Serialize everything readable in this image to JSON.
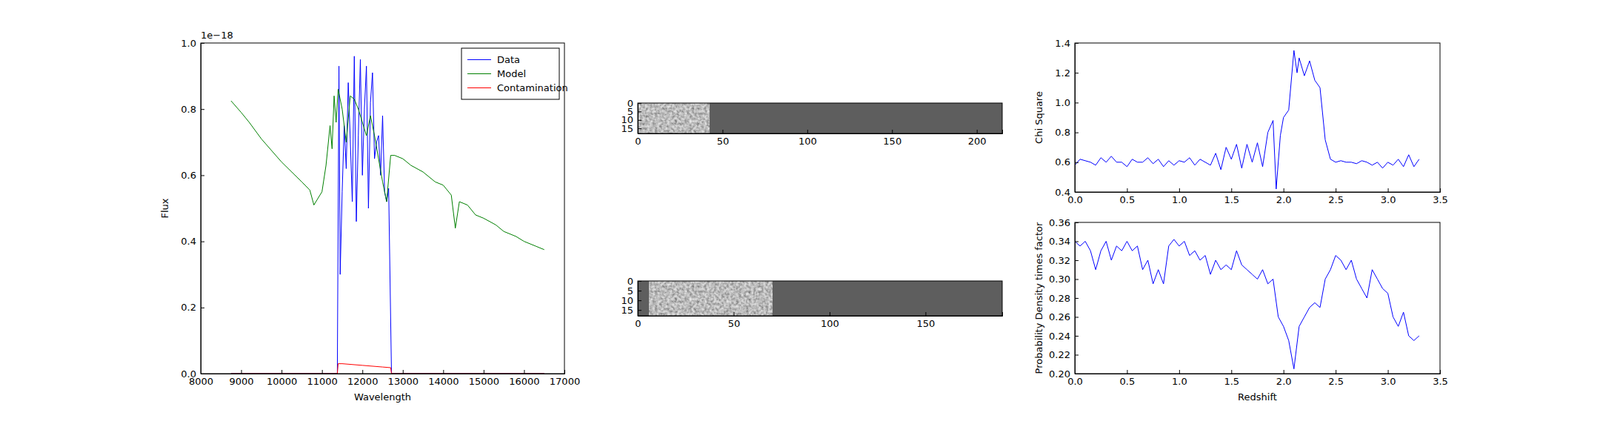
{
  "chart_data": [
    {
      "type": "line",
      "xlabel": "Wavelength",
      "ylabel": "Flux",
      "offset_label": "1e−18",
      "xlim": [
        8000,
        17000
      ],
      "xticks": [
        8000,
        9000,
        10000,
        11000,
        12000,
        13000,
        14000,
        15000,
        16000,
        17000
      ],
      "ylim": [
        0,
        1
      ],
      "yticks": [
        {
          "value": 0,
          "label": "0.0"
        },
        {
          "value": 0.2,
          "label": "0.2"
        },
        {
          "value": 0.4,
          "label": "0.4"
        },
        {
          "value": 0.6,
          "label": "0.6"
        },
        {
          "value": 0.8,
          "label": "0.8"
        },
        {
          "value": 1,
          "label": "1.0"
        }
      ],
      "legend": "upper right",
      "series": [
        {
          "name": "Data",
          "color": "#0000ff",
          "x": [
            8750,
            11380,
            11420,
            11450,
            11500,
            11550,
            11600,
            11650,
            11700,
            11750,
            11800,
            11850,
            11900,
            11950,
            12000,
            12050,
            12100,
            12150,
            12200,
            12250,
            12300,
            12350,
            12400,
            12450,
            12500,
            12550,
            12600,
            12650,
            12720,
            16500
          ],
          "values": [
            0,
            0,
            0.93,
            0.3,
            0.55,
            0.75,
            0.62,
            0.88,
            0.71,
            0.52,
            0.96,
            0.46,
            0.72,
            0.95,
            0.6,
            0.8,
            0.93,
            0.5,
            0.82,
            0.91,
            0.65,
            0.7,
            0.72,
            0.6,
            0.78,
            0.55,
            0.52,
            0.56,
            0,
            0
          ]
        },
        {
          "name": "Model",
          "color": "#008000",
          "x": [
            8750,
            9000,
            9200,
            9500,
            10000,
            10500,
            10700,
            10800,
            11000,
            11100,
            11200,
            11250,
            11300,
            11350,
            11400,
            11500,
            11600,
            11700,
            11800,
            11900,
            12000,
            12100,
            12200,
            12300,
            12400,
            12500,
            12600,
            12700,
            12800,
            13000,
            13200,
            13500,
            13800,
            14000,
            14200,
            14300,
            14400,
            14600,
            14800,
            15000,
            15300,
            15500,
            15800,
            16000,
            16300,
            16500
          ],
          "values": [
            0.825,
            0.79,
            0.76,
            0.71,
            0.64,
            0.58,
            0.555,
            0.51,
            0.55,
            0.63,
            0.75,
            0.68,
            0.84,
            0.76,
            0.86,
            0.8,
            0.7,
            0.84,
            0.83,
            0.8,
            0.76,
            0.72,
            0.78,
            0.72,
            0.65,
            0.58,
            0.52,
            0.66,
            0.66,
            0.65,
            0.63,
            0.61,
            0.58,
            0.57,
            0.54,
            0.44,
            0.52,
            0.51,
            0.48,
            0.47,
            0.45,
            0.43,
            0.415,
            0.4,
            0.385,
            0.375
          ]
        },
        {
          "name": "Contamination",
          "color": "#ff0000",
          "x": [
            8750,
            11380,
            11400,
            11500,
            12000,
            12500,
            12700,
            12720,
            16500
          ],
          "values": [
            0,
            0,
            0.03,
            0.03,
            0.025,
            0.02,
            0.018,
            0,
            0
          ]
        }
      ]
    },
    {
      "type": "image",
      "xlim": [
        0,
        215
      ],
      "xticks": [
        0,
        50,
        100,
        150,
        200
      ],
      "ylim": [
        18,
        0
      ],
      "yticks": [
        0,
        5,
        10,
        15
      ],
      "data_extent": [
        0,
        42
      ]
    },
    {
      "type": "image",
      "xlim": [
        0,
        190
      ],
      "xticks": [
        0,
        50,
        100,
        150
      ],
      "ylim": [
        18,
        0
      ],
      "yticks": [
        0,
        5,
        10,
        15
      ],
      "data_extent": [
        6,
        70
      ]
    },
    {
      "type": "line",
      "ylabel": "Chi Square",
      "color": "#0000ff",
      "xlim": [
        0,
        3.5
      ],
      "xticks": [
        {
          "value": 0,
          "label": "0.0"
        },
        0.5,
        {
          "value": 1,
          "label": "1.0"
        },
        1.5,
        {
          "value": 2,
          "label": "2.0"
        },
        2.5,
        {
          "value": 3,
          "label": "3.0"
        },
        3.5
      ],
      "ylim": [
        0.4,
        1.4
      ],
      "yticks": [
        0.4,
        0.6,
        0.8,
        {
          "value": 1,
          "label": "1.0"
        },
        1.2,
        1.4
      ],
      "x": [
        0,
        0.05,
        0.1,
        0.15,
        0.2,
        0.25,
        0.3,
        0.35,
        0.4,
        0.45,
        0.5,
        0.55,
        0.6,
        0.65,
        0.7,
        0.75,
        0.8,
        0.85,
        0.9,
        0.95,
        1.0,
        1.05,
        1.1,
        1.15,
        1.2,
        1.25,
        1.3,
        1.35,
        1.4,
        1.45,
        1.5,
        1.55,
        1.6,
        1.65,
        1.7,
        1.75,
        1.8,
        1.85,
        1.9,
        1.93,
        1.97,
        2.0,
        2.05,
        2.1,
        2.13,
        2.15,
        2.2,
        2.25,
        2.3,
        2.35,
        2.4,
        2.45,
        2.5,
        2.55,
        2.6,
        2.65,
        2.7,
        2.75,
        2.8,
        2.85,
        2.9,
        2.95,
        3.0,
        3.05,
        3.1,
        3.15,
        3.2,
        3.25,
        3.3
      ],
      "values": [
        0.58,
        0.62,
        0.61,
        0.6,
        0.58,
        0.63,
        0.6,
        0.64,
        0.6,
        0.6,
        0.57,
        0.62,
        0.6,
        0.6,
        0.63,
        0.59,
        0.62,
        0.57,
        0.61,
        0.58,
        0.61,
        0.6,
        0.63,
        0.58,
        0.62,
        0.6,
        0.58,
        0.66,
        0.55,
        0.7,
        0.62,
        0.72,
        0.56,
        0.72,
        0.6,
        0.73,
        0.57,
        0.8,
        0.88,
        0.42,
        0.78,
        0.9,
        0.95,
        1.35,
        1.2,
        1.3,
        1.18,
        1.28,
        1.15,
        1.1,
        0.75,
        0.62,
        0.6,
        0.61,
        0.6,
        0.6,
        0.59,
        0.61,
        0.6,
        0.58,
        0.6,
        0.56,
        0.6,
        0.58,
        0.62,
        0.57,
        0.65,
        0.57,
        0.62
      ]
    },
    {
      "type": "line",
      "xlabel": "Redshift",
      "ylabel": "Probability Density times factor",
      "color": "#0000ff",
      "xlim": [
        0,
        3.5
      ],
      "xticks": [
        {
          "value": 0,
          "label": "0.0"
        },
        0.5,
        {
          "value": 1,
          "label": "1.0"
        },
        1.5,
        {
          "value": 2,
          "label": "2.0"
        },
        2.5,
        {
          "value": 3,
          "label": "3.0"
        },
        3.5
      ],
      "ylim": [
        0.2,
        0.36
      ],
      "yticks": [
        {
          "value": 0.2,
          "label": "0.20"
        },
        0.22,
        0.24,
        0.26,
        0.28,
        {
          "value": 0.3,
          "label": "0.30"
        },
        0.32,
        0.34,
        0.36
      ],
      "x": [
        0,
        0.05,
        0.1,
        0.15,
        0.2,
        0.25,
        0.3,
        0.35,
        0.4,
        0.45,
        0.5,
        0.55,
        0.6,
        0.65,
        0.7,
        0.75,
        0.8,
        0.85,
        0.9,
        0.95,
        1.0,
        1.05,
        1.1,
        1.15,
        1.2,
        1.25,
        1.3,
        1.35,
        1.4,
        1.45,
        1.5,
        1.55,
        1.6,
        1.65,
        1.7,
        1.75,
        1.8,
        1.85,
        1.9,
        1.95,
        2.0,
        2.05,
        2.1,
        2.15,
        2.2,
        2.25,
        2.3,
        2.35,
        2.4,
        2.45,
        2.5,
        2.55,
        2.6,
        2.65,
        2.7,
        2.75,
        2.8,
        2.85,
        2.9,
        2.95,
        3.0,
        3.05,
        3.1,
        3.15,
        3.2,
        3.25,
        3.3
      ],
      "values": [
        0.34,
        0.335,
        0.34,
        0.33,
        0.31,
        0.33,
        0.34,
        0.32,
        0.335,
        0.33,
        0.34,
        0.33,
        0.335,
        0.31,
        0.32,
        0.295,
        0.31,
        0.295,
        0.335,
        0.342,
        0.335,
        0.34,
        0.325,
        0.33,
        0.32,
        0.325,
        0.305,
        0.32,
        0.31,
        0.315,
        0.31,
        0.33,
        0.315,
        0.31,
        0.305,
        0.3,
        0.31,
        0.295,
        0.3,
        0.26,
        0.25,
        0.235,
        0.205,
        0.25,
        0.26,
        0.27,
        0.275,
        0.27,
        0.3,
        0.31,
        0.325,
        0.32,
        0.31,
        0.32,
        0.3,
        0.29,
        0.28,
        0.31,
        0.3,
        0.29,
        0.285,
        0.26,
        0.25,
        0.265,
        0.24,
        0.235,
        0.24
      ]
    }
  ]
}
